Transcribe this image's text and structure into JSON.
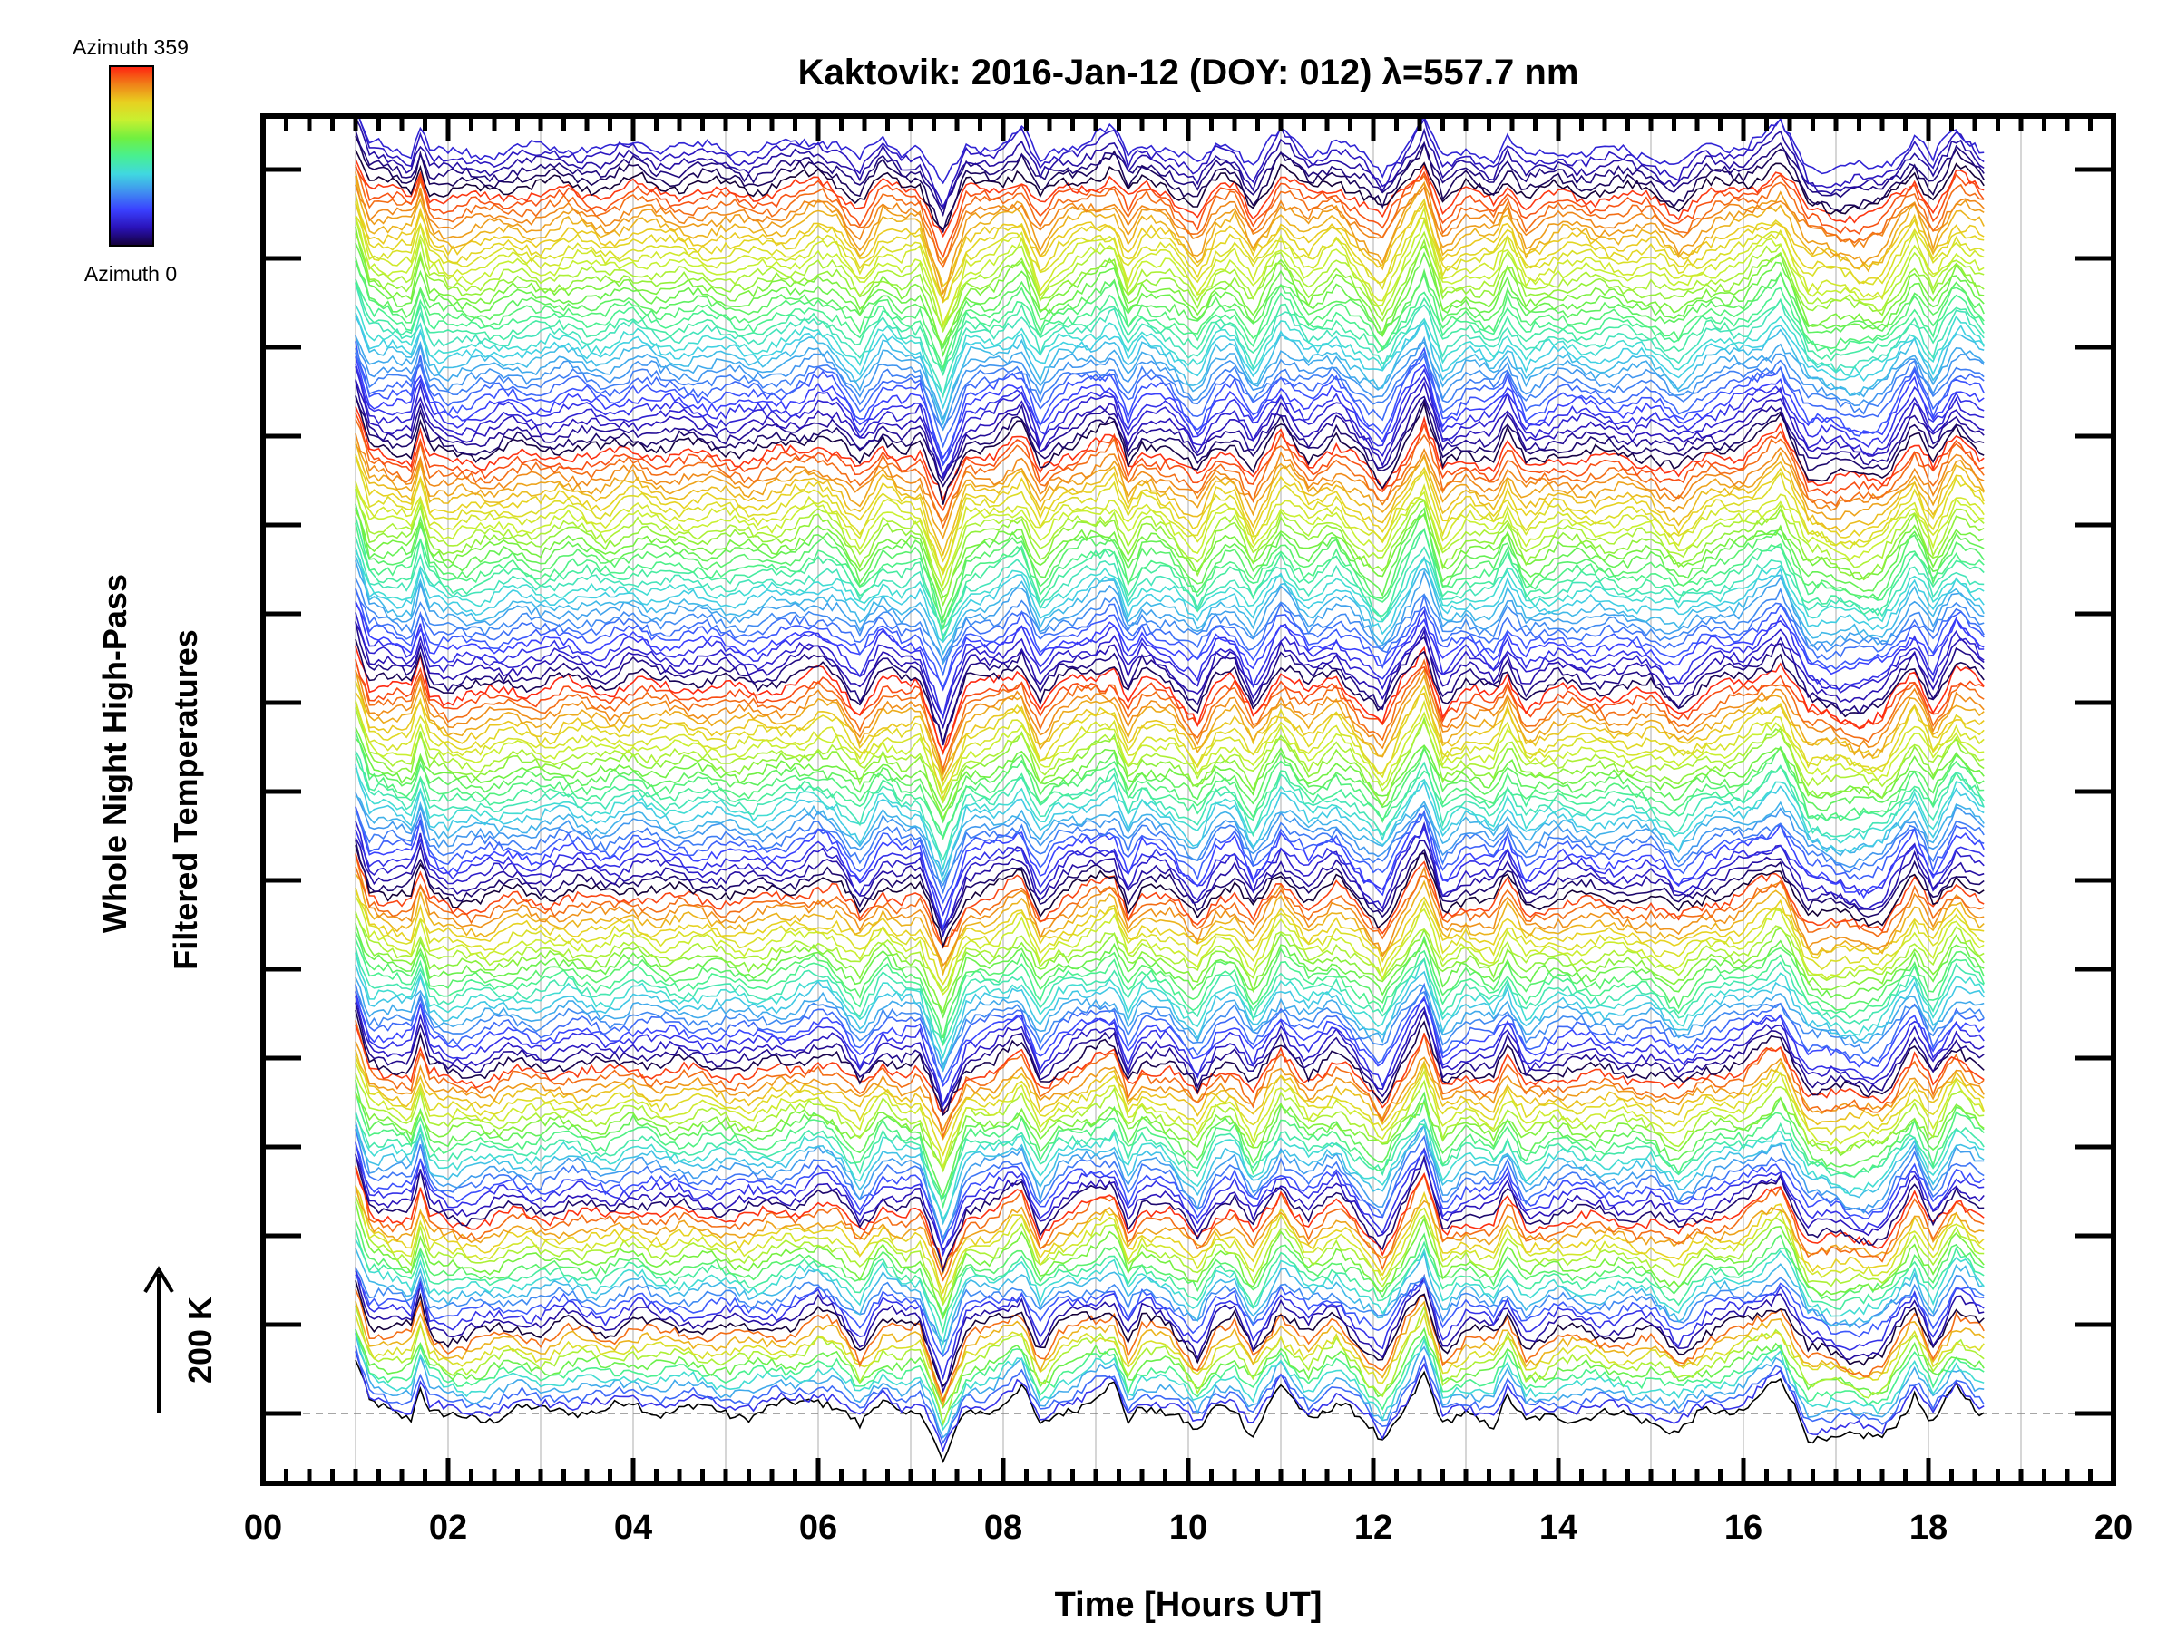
{
  "chart_data": {
    "type": "line",
    "title": "Kaktovik: 2016-Jan-12 (DOY: 012) λ=557.7 nm",
    "xlabel": "Time [Hours UT]",
    "ylabel": [
      "Whole Night High-Pass",
      "Filtered Temperatures"
    ],
    "xlim": [
      0,
      20
    ],
    "ylim_K": [
      -97,
      1811
    ],
    "xtick_labels": [
      "00",
      "02",
      "04",
      "06",
      "08",
      "10",
      "12",
      "14",
      "16",
      "18",
      "20"
    ],
    "xtick_values": [
      0,
      2,
      4,
      6,
      8,
      10,
      12,
      14,
      16,
      18,
      20
    ],
    "grid": "vertical lines every hour",
    "scale_bar": {
      "label": "200 K",
      "value_K": 200
    },
    "baseline_K": 0,
    "colorbar": {
      "top_label": "Azimuth 359",
      "bottom_label": "Azimuth 0",
      "range": [
        0,
        359
      ],
      "colors": [
        "#140038",
        "#2a12b8",
        "#3a40ff",
        "#4090f0",
        "#40d8e0",
        "#48f090",
        "#70f040",
        "#c8f030",
        "#e8d020",
        "#f08018",
        "#ff2010"
      ]
    },
    "time_range_h": [
      1.0,
      18.6
    ],
    "sample_step_h": 0.05,
    "rings": [
      {
        "n": 1,
        "zenith": true
      },
      {
        "n": 12
      },
      {
        "n": 16
      },
      {
        "n": 20
      },
      {
        "n": 24
      },
      {
        "n": 28
      },
      {
        "n": 32
      },
      {
        "n": 36
      }
    ],
    "trace_offset_step_K": 10.5,
    "signal_amplitude_K": 45,
    "noise_K": 6,
    "common_signal_knots": [
      [
        1.0,
        1.5
      ],
      [
        1.15,
        0.2
      ],
      [
        1.4,
        0.1
      ],
      [
        1.6,
        0.0
      ],
      [
        1.7,
        0.9
      ],
      [
        1.8,
        0.0
      ],
      [
        2.0,
        -0.2
      ],
      [
        2.4,
        -0.1
      ],
      [
        2.7,
        0.1
      ],
      [
        3.0,
        0.0
      ],
      [
        3.3,
        0.2
      ],
      [
        3.7,
        0.0
      ],
      [
        4.0,
        0.3
      ],
      [
        4.3,
        0.1
      ],
      [
        4.8,
        0.1
      ],
      [
        5.3,
        0.0
      ],
      [
        5.7,
        0.2
      ],
      [
        6.0,
        0.5
      ],
      [
        6.2,
        0.3
      ],
      [
        6.45,
        -0.5
      ],
      [
        6.7,
        0.4
      ],
      [
        6.9,
        0.1
      ],
      [
        7.1,
        0.2
      ],
      [
        7.35,
        -1.6
      ],
      [
        7.6,
        0.1
      ],
      [
        7.9,
        0.2
      ],
      [
        8.2,
        0.7
      ],
      [
        8.4,
        -0.5
      ],
      [
        8.6,
        0.1
      ],
      [
        8.9,
        0.4
      ],
      [
        9.2,
        0.7
      ],
      [
        9.35,
        -0.3
      ],
      [
        9.5,
        0.3
      ],
      [
        9.8,
        0.1
      ],
      [
        10.1,
        -0.7
      ],
      [
        10.3,
        0.2
      ],
      [
        10.5,
        0.3
      ],
      [
        10.7,
        -0.6
      ],
      [
        11.0,
        0.7
      ],
      [
        11.3,
        -0.1
      ],
      [
        11.6,
        0.4
      ],
      [
        11.8,
        -0.1
      ],
      [
        12.1,
        -0.9
      ],
      [
        12.3,
        0.1
      ],
      [
        12.55,
        1.2
      ],
      [
        12.75,
        -0.5
      ],
      [
        13.0,
        0.0
      ],
      [
        13.3,
        -0.2
      ],
      [
        13.45,
        0.5
      ],
      [
        13.65,
        -0.4
      ],
      [
        14.0,
        0.0
      ],
      [
        14.5,
        -0.1
      ],
      [
        15.0,
        -0.1
      ],
      [
        15.3,
        -0.6
      ],
      [
        15.6,
        0.0
      ],
      [
        16.0,
        0.2
      ],
      [
        16.4,
        0.9
      ],
      [
        16.7,
        -0.6
      ],
      [
        17.0,
        -0.7
      ],
      [
        17.3,
        -0.8
      ],
      [
        17.5,
        -0.7
      ],
      [
        17.85,
        0.6
      ],
      [
        18.05,
        -0.4
      ],
      [
        18.3,
        0.7
      ],
      [
        18.6,
        0.1
      ]
    ]
  }
}
